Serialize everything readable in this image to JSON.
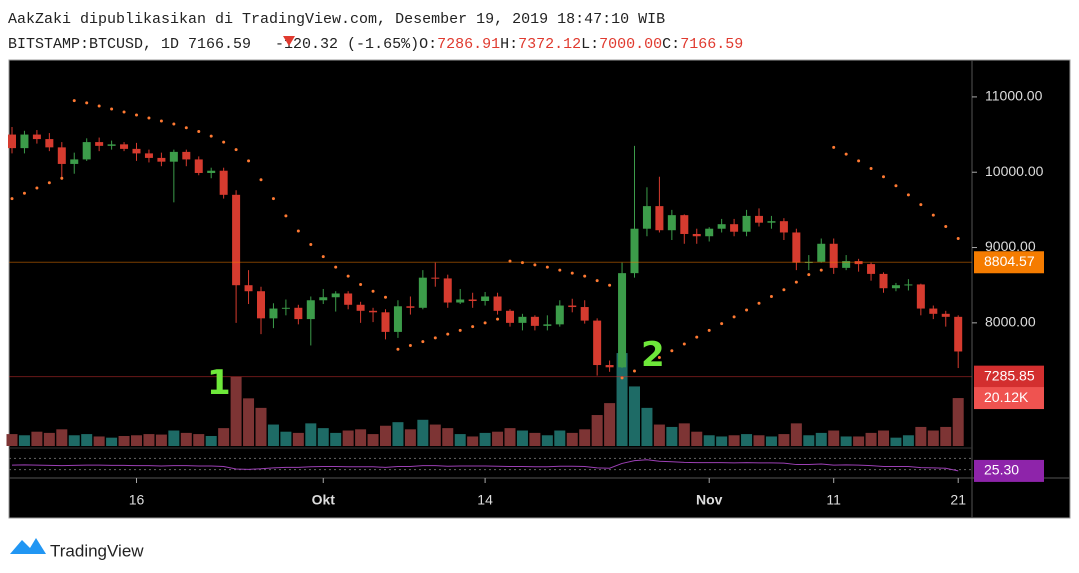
{
  "header": {
    "published": "AakZaki dipublikasikan di TradingView.com, Desember 19, 2019 18:47:10 WIB",
    "symbol": "BITSTAMP:BTCUSD, 1D 7166.59",
    "change": "-120.32 (-1.65%)",
    "o_label": "O:",
    "o": "7286.91",
    "h_label": "H:",
    "h": "7372.12",
    "l_label": "L:",
    "l": "7000.00",
    "c_label": "C:",
    "c": "7166.59"
  },
  "footer": {
    "brand": "TradingView"
  },
  "chart_data": {
    "type": "candlestick",
    "categories": [
      null,
      null,
      null,
      null,
      null,
      null,
      null,
      null,
      null,
      null,
      "16",
      null,
      null,
      null,
      null,
      null,
      null,
      null,
      null,
      null,
      null,
      null,
      null,
      null,
      null,
      "Okt",
      null,
      null,
      null,
      null,
      null,
      null,
      null,
      null,
      null,
      null,
      null,
      null,
      "14",
      null,
      null,
      null,
      null,
      null,
      null,
      null,
      null,
      null,
      null,
      null,
      null,
      null,
      null,
      null,
      null,
      null,
      "Nov",
      null,
      null,
      null,
      null,
      null,
      null,
      null,
      null,
      null,
      "11",
      null,
      null,
      null,
      null,
      null,
      null,
      null,
      null,
      null,
      "21"
    ],
    "open": [
      10500,
      10320,
      10500,
      10440,
      10330,
      10110,
      10170,
      10400,
      10350,
      10370,
      10310,
      10250,
      10190,
      10140,
      10270,
      10170,
      9990,
      10020,
      9700,
      8500,
      8420,
      8060,
      8190,
      8200,
      8050,
      8300,
      8340,
      8390,
      8240,
      8160,
      8140,
      7880,
      8220,
      8200,
      8600,
      8590,
      8270,
      8310,
      8290,
      8350,
      8160,
      8000,
      8080,
      7960,
      7980,
      8230,
      8210,
      8030,
      7440,
      7410,
      8660,
      9250,
      9550,
      9230,
      9430,
      9180,
      9150,
      9250,
      9310,
      9210,
      9420,
      9330,
      9350,
      9200,
      8800,
      8810,
      9050,
      8730,
      8820,
      8780,
      8650,
      8460,
      8500,
      8510,
      8190,
      8120,
      8080
    ],
    "high": [
      10600,
      10550,
      10560,
      10520,
      10400,
      10260,
      10450,
      10460,
      10420,
      10400,
      10390,
      10300,
      10260,
      10300,
      10300,
      10210,
      10060,
      10060,
      9760,
      8700,
      8480,
      8260,
      8310,
      8240,
      8350,
      8450,
      8420,
      8420,
      8280,
      8200,
      8180,
      8300,
      8350,
      8700,
      8800,
      8640,
      8450,
      8400,
      8410,
      8400,
      8180,
      8120,
      8100,
      8100,
      8300,
      8320,
      8300,
      8060,
      7500,
      8800,
      10350,
      9800,
      9940,
      9500,
      9440,
      9250,
      9270,
      9380,
      9380,
      9500,
      9520,
      9420,
      9390,
      9250,
      8900,
      9120,
      9120,
      8900,
      8850,
      8800,
      8670,
      8530,
      8580,
      8520,
      8230,
      8160,
      8100
    ],
    "low": [
      10250,
      10250,
      10380,
      10280,
      9900,
      9980,
      10150,
      10280,
      10300,
      10280,
      10150,
      10130,
      10080,
      9600,
      10080,
      9960,
      9920,
      9650,
      8000,
      8250,
      7850,
      7930,
      8100,
      7980,
      7700,
      8250,
      8150,
      8180,
      8000,
      8010,
      7780,
      7800,
      8110,
      8180,
      8480,
      8200,
      8250,
      8200,
      8230,
      8110,
      7950,
      7900,
      7900,
      7900,
      7950,
      8140,
      7990,
      7300,
      7350,
      7400,
      8600,
      9150,
      9200,
      9100,
      9050,
      9050,
      9080,
      9200,
      9150,
      9150,
      9280,
      9250,
      9100,
      8700,
      8700,
      8800,
      8650,
      8700,
      8680,
      8560,
      8400,
      8420,
      8430,
      8100,
      8050,
      7950,
      7400
    ],
    "close": [
      10320,
      10500,
      10440,
      10330,
      10110,
      10170,
      10400,
      10350,
      10370,
      10310,
      10250,
      10190,
      10140,
      10270,
      10170,
      9990,
      10020,
      9700,
      8500,
      8420,
      8060,
      8190,
      8200,
      8050,
      8300,
      8340,
      8390,
      8240,
      8160,
      8140,
      7880,
      8220,
      8200,
      8600,
      8590,
      8270,
      8310,
      8290,
      8350,
      8160,
      8000,
      8080,
      7960,
      7980,
      8230,
      8210,
      8030,
      7440,
      7410,
      8660,
      9250,
      9550,
      9230,
      9430,
      9180,
      9150,
      9250,
      9310,
      9210,
      9420,
      9330,
      9350,
      9200,
      8800,
      8810,
      9050,
      8730,
      8820,
      8780,
      8650,
      8460,
      8500,
      8510,
      8190,
      8120,
      8080,
      7620
    ],
    "volume": [
      5000,
      4500,
      6000,
      5500,
      7000,
      4500,
      5000,
      4000,
      3500,
      4200,
      4500,
      5000,
      4800,
      6500,
      5500,
      5000,
      4200,
      7500,
      29000,
      20000,
      16000,
      9000,
      6000,
      5500,
      9500,
      7500,
      5500,
      6500,
      7000,
      5000,
      8500,
      10000,
      7000,
      11000,
      9000,
      7500,
      5000,
      4000,
      5500,
      6000,
      7500,
      6500,
      5500,
      4500,
      6500,
      5500,
      7000,
      13000,
      18000,
      39000,
      25000,
      16000,
      9000,
      8000,
      9500,
      6000,
      4500,
      4000,
      4500,
      5000,
      4500,
      4000,
      5000,
      9500,
      4500,
      5500,
      6500,
      4000,
      4000,
      5500,
      6500,
      3500,
      4500,
      8000,
      6500,
      8000,
      20120
    ],
    "sar": [
      9650,
      9720,
      9790,
      9860,
      9920,
      10950,
      10920,
      10880,
      10840,
      10800,
      10760,
      10720,
      10680,
      10640,
      10590,
      10540,
      10480,
      10400,
      10300,
      10150,
      9900,
      9650,
      9420,
      9220,
      9040,
      8880,
      8740,
      8620,
      8510,
      8420,
      8340,
      7650,
      7700,
      7750,
      7800,
      7850,
      7900,
      7950,
      8000,
      8050,
      8820,
      8800,
      8770,
      8740,
      8700,
      8660,
      8620,
      8560,
      8500,
      7270,
      7360,
      7450,
      7540,
      7630,
      7720,
      7810,
      7900,
      7990,
      8080,
      8170,
      8260,
      8350,
      8440,
      8540,
      8640,
      8700,
      10330,
      10240,
      10150,
      10050,
      9940,
      9820,
      9700,
      9570,
      9430,
      9280,
      9120
    ],
    "indicator": [
      46,
      47,
      46,
      45,
      44,
      45,
      46,
      46,
      45,
      45,
      44,
      44,
      43,
      44,
      44,
      43,
      43,
      41,
      32,
      31,
      33,
      36,
      38,
      38,
      40,
      41,
      41,
      40,
      40,
      40,
      38,
      41,
      41,
      44,
      44,
      42,
      43,
      43,
      43,
      42,
      41,
      41,
      40,
      40,
      42,
      42,
      41,
      36,
      35,
      52,
      62,
      65,
      60,
      58,
      56,
      55,
      55,
      55,
      54,
      55,
      54,
      54,
      53,
      48,
      48,
      50,
      46,
      47,
      46,
      44,
      41,
      41,
      41,
      37,
      36,
      35,
      25.3
    ],
    "ylim": [
      6365,
      11490
    ],
    "yticks": [
      {
        "value": 11000,
        "label": "11000.00"
      },
      {
        "value": 10000,
        "label": "10000.00"
      },
      {
        "value": 9000,
        "label": "9000.00"
      },
      {
        "value": 8000,
        "label": "8000.00"
      }
    ],
    "volume_ylim": [
      0,
      162000
    ],
    "indicator_ylim": [
      0,
      100
    ],
    "up_color": "#3c9c4a",
    "down_color": "#d63b2f",
    "up_volume_color": "#1e6b66",
    "down_volume_color": "#7d3434",
    "sar_color": "#ff7a33",
    "indicator_color": "#9c3fb5",
    "badges": [
      {
        "pane": "price",
        "value": 8804.57,
        "label": "8804.57",
        "color": "#f57c00"
      },
      {
        "pane": "price",
        "value": 7285.85,
        "label": "7285.85",
        "color": "#d32f2f"
      },
      {
        "pane": "volume",
        "value": 20120,
        "label": "20.12K",
        "color": "#ef5350"
      },
      {
        "pane": "indicator",
        "value": 25.3,
        "label": "25.30",
        "color": "#8e24aa"
      }
    ],
    "annotations": [
      "1",
      "2"
    ]
  }
}
